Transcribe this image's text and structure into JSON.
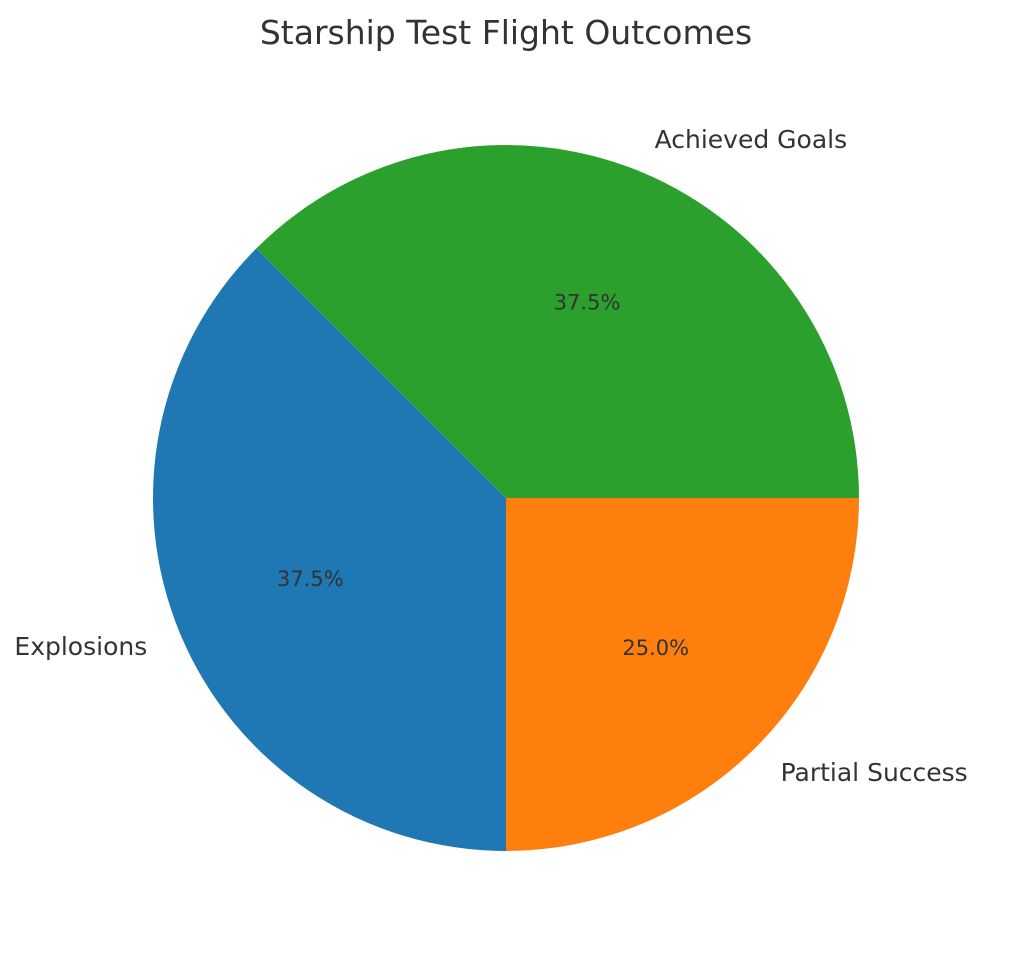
{
  "chart_data": {
    "type": "pie",
    "title": "Starship Test Flight Outcomes",
    "start_angle_deg": 135,
    "direction": "counterclockwise",
    "slices": [
      {
        "label": "Explosions",
        "value": 37.5,
        "pct_label": "37.5%",
        "color": "#1f77b4"
      },
      {
        "label": "Partial Success",
        "value": 25.0,
        "pct_label": "25.0%",
        "color": "#ff7f0e"
      },
      {
        "label": "Achieved Goals",
        "value": 37.5,
        "pct_label": "37.5%",
        "color": "#2ca02c"
      }
    ]
  }
}
